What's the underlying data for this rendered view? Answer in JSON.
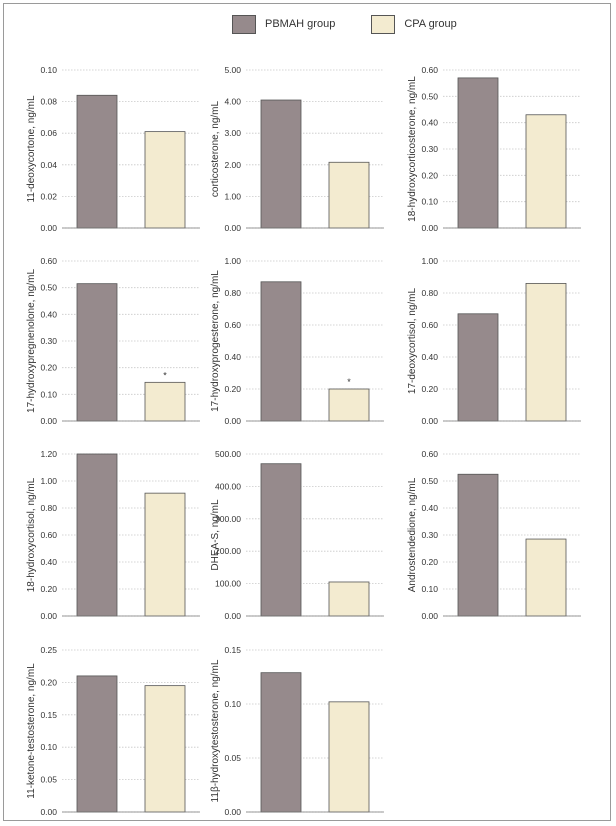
{
  "legend": {
    "pbmah_label": "PBMAH group",
    "cpa_label": "CPA group",
    "pbmah_color": "#968a8c",
    "cpa_color": "#f3ebd0"
  },
  "chart_data": [
    {
      "type": "bar",
      "ylabel": "11-deoxycortone, ng/mL",
      "categories": [
        "PBMAH group",
        "CPA group"
      ],
      "values": [
        0.084,
        0.061
      ],
      "ylim": [
        0,
        0.1
      ],
      "yticks": [
        "0.00",
        "0.02",
        "0.04",
        "0.06",
        "0.08",
        "0.10"
      ],
      "annotations": [
        "",
        ""
      ]
    },
    {
      "type": "bar",
      "ylabel": "corticosterone, ng/mL",
      "categories": [
        "PBMAH group",
        "CPA group"
      ],
      "values": [
        4.05,
        2.08
      ],
      "ylim": [
        0,
        5
      ],
      "yticks": [
        "0.00",
        "1.00",
        "2.00",
        "3.00",
        "4.00",
        "5.00"
      ],
      "annotations": [
        "",
        ""
      ]
    },
    {
      "type": "bar",
      "ylabel": "18-hydroxycorticosterone, ng/mL",
      "categories": [
        "PBMAH group",
        "CPA group"
      ],
      "values": [
        0.57,
        0.43
      ],
      "ylim": [
        0,
        0.6
      ],
      "yticks": [
        "0.00",
        "0.10",
        "0.20",
        "0.30",
        "0.40",
        "0.50",
        "0.60"
      ],
      "annotations": [
        "",
        ""
      ]
    },
    {
      "type": "bar",
      "ylabel": "17-hydroxypregnenolone, ng/mL",
      "categories": [
        "PBMAH group",
        "CPA group"
      ],
      "values": [
        0.515,
        0.145
      ],
      "ylim": [
        0,
        0.6
      ],
      "yticks": [
        "0.00",
        "0.10",
        "0.20",
        "0.30",
        "0.40",
        "0.50",
        "0.60"
      ],
      "annotations": [
        "",
        "*"
      ]
    },
    {
      "type": "bar",
      "ylabel": "17-hydroxyprogesterone, ng/mL",
      "categories": [
        "PBMAH group",
        "CPA group"
      ],
      "values": [
        0.87,
        0.2
      ],
      "ylim": [
        0,
        1
      ],
      "yticks": [
        "0.00",
        "0.20",
        "0.40",
        "0.60",
        "0.80",
        "1.00"
      ],
      "annotations": [
        "",
        "*"
      ]
    },
    {
      "type": "bar",
      "ylabel": "17-deoxycortisol, ng/mL",
      "categories": [
        "PBMAH group",
        "CPA group"
      ],
      "values": [
        0.67,
        0.86
      ],
      "ylim": [
        0,
        1
      ],
      "yticks": [
        "0.00",
        "0.20",
        "0.40",
        "0.60",
        "0.80",
        "1.00"
      ],
      "annotations": [
        "",
        ""
      ]
    },
    {
      "type": "bar",
      "ylabel": "18-hydroxycortisol, ng/mL",
      "categories": [
        "PBMAH group",
        "CPA group"
      ],
      "values": [
        1.2,
        0.91
      ],
      "ylim": [
        0,
        1.2
      ],
      "yticks": [
        "0.00",
        "0.20",
        "0.40",
        "0.60",
        "0.80",
        "1.00",
        "1.20"
      ],
      "annotations": [
        "",
        ""
      ]
    },
    {
      "type": "bar",
      "ylabel": "DHEA-S, ng/mL",
      "categories": [
        "PBMAH group",
        "CPA group"
      ],
      "values": [
        470,
        105
      ],
      "ylim": [
        0,
        500
      ],
      "yticks": [
        "0.00",
        "100.00",
        "200.00",
        "300.00",
        "400.00",
        "500.00"
      ],
      "annotations": [
        "",
        ""
      ]
    },
    {
      "type": "bar",
      "ylabel": "Androstendedione, ng/mL",
      "categories": [
        "PBMAH group",
        "CPA group"
      ],
      "values": [
        0.525,
        0.285
      ],
      "ylim": [
        0,
        0.6
      ],
      "yticks": [
        "0.00",
        "0.10",
        "0.20",
        "0.30",
        "0.40",
        "0.50",
        "0.60"
      ],
      "annotations": [
        "",
        ""
      ]
    },
    {
      "type": "bar",
      "ylabel": "11-ketone-testosterone, ng/mL",
      "categories": [
        "PBMAH group",
        "CPA group"
      ],
      "values": [
        0.21,
        0.195
      ],
      "ylim": [
        0,
        0.25
      ],
      "yticks": [
        "0.00",
        "0.05",
        "0.10",
        "0.15",
        "0.20",
        "0.25"
      ],
      "annotations": [
        "",
        ""
      ]
    },
    {
      "type": "bar",
      "ylabel": "11β-hydroxytestosterone, ng/mL",
      "categories": [
        "PBMAH group",
        "CPA group"
      ],
      "values": [
        0.129,
        0.102
      ],
      "ylim": [
        0,
        0.15
      ],
      "yticks": [
        "0.00",
        "0.05",
        "0.10",
        "0.15"
      ],
      "annotations": [
        "",
        ""
      ]
    }
  ]
}
